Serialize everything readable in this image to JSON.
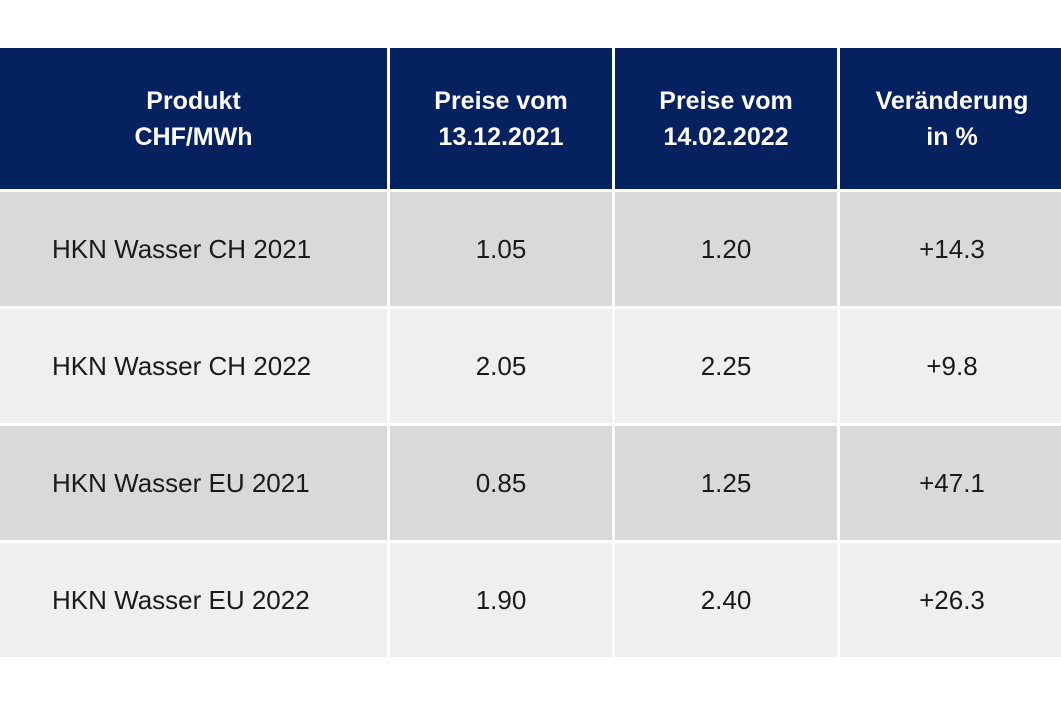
{
  "chart_data": {
    "type": "table",
    "columns": [
      {
        "line1": "Produkt",
        "line2": "CHF/MWh"
      },
      {
        "line1": "Preise vom",
        "line2": "13.12.2021"
      },
      {
        "line1": "Preise vom",
        "line2": "14.02.2022"
      },
      {
        "line1": "Veränderung",
        "line2": "in %"
      }
    ],
    "rows": [
      [
        "HKN Wasser CH 2021",
        "1.05",
        "1.20",
        "+14.3"
      ],
      [
        "HKN Wasser CH 2022",
        "2.05",
        "2.25",
        "+9.8"
      ],
      [
        "HKN Wasser EU 2021",
        "0.85",
        "1.25",
        "+47.1"
      ],
      [
        "HKN Wasser EU 2022",
        "1.90",
        "2.40",
        "+26.3"
      ]
    ]
  },
  "colors": {
    "header_bg": "#06215f",
    "header_text": "#ffffff",
    "row_dark": "#d9d9d9",
    "row_light": "#efefef"
  }
}
